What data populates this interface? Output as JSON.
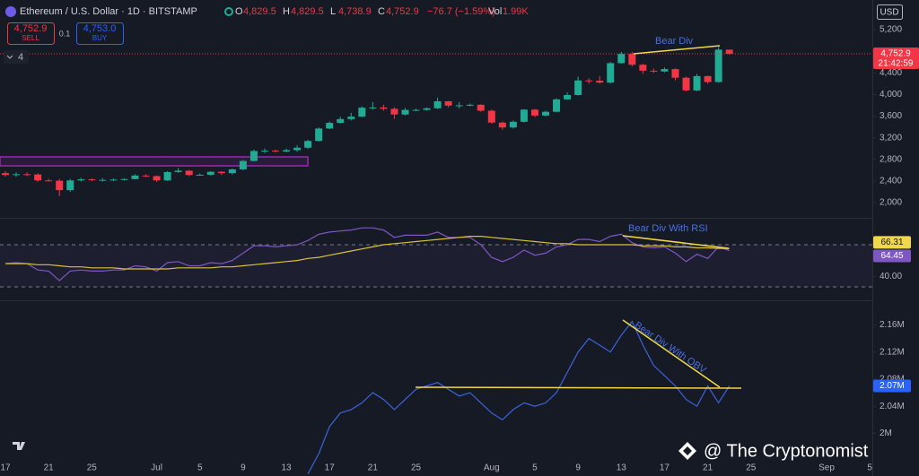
{
  "header": {
    "symbol": "Ethereum / U.S. Dollar · 1D · BITSTAMP",
    "ohlc": [
      {
        "key": "O",
        "value": "4,829.5"
      },
      {
        "key": "H",
        "value": "4,829.5"
      },
      {
        "key": "L",
        "value": "4,738.9"
      },
      {
        "key": "C",
        "value": "4,752.9"
      }
    ],
    "change": "−76.7 (−1.59%)",
    "vol_key": "Vol",
    "vol": "1.99K",
    "sell_price": "4,752.9",
    "sell": "SELL",
    "spread": "0.1",
    "buy_price": "4,753.0",
    "buy": "BUY",
    "indicators": "4",
    "currency": "USD",
    "countdown": "21:42:59",
    "watermark": "@ The Cryptonomist"
  },
  "chart_data": [
    {
      "type": "candlestick",
      "annotation": "Bear Div",
      "up_color": "#22ab94",
      "down_color": "#f23645",
      "grid": false,
      "x": [
        "Jun 17",
        "Jun 18",
        "Jun 19",
        "Jun 20",
        "Jun 21",
        "Jun 22",
        "Jun 23",
        "Jun 24",
        "Jun 25",
        "Jun 26",
        "Jun 27",
        "Jun 28",
        "Jun 29",
        "Jun 30",
        "Jul 1",
        "Jul 2",
        "Jul 3",
        "Jul 4",
        "Jul 5",
        "Jul 6",
        "Jul 7",
        "Jul 8",
        "Jul 9",
        "Jul 10",
        "Jul 11",
        "Jul 12",
        "Jul 13",
        "Jul 14",
        "Jul 15",
        "Jul 16",
        "Jul 17",
        "Jul 18",
        "Jul 19",
        "Jul 20",
        "Jul 21",
        "Jul 22",
        "Jul 23",
        "Jul 24",
        "Jul 25",
        "Jul 26",
        "Jul 27",
        "Jul 28",
        "Jul 29",
        "Jul 30",
        "Jul 31",
        "Aug 1",
        "Aug 2",
        "Aug 3",
        "Aug 4",
        "Aug 5",
        "Aug 6",
        "Aug 7",
        "Aug 8",
        "Aug 9",
        "Aug 10",
        "Aug 11",
        "Aug 12",
        "Aug 13",
        "Aug 14",
        "Aug 15",
        "Aug 16",
        "Aug 17",
        "Aug 18",
        "Aug 19",
        "Aug 20",
        "Aug 21",
        "Aug 22",
        "Aug 23"
      ],
      "open": [
        2545,
        2510,
        2525,
        2520,
        2410,
        2405,
        2230,
        2410,
        2430,
        2420,
        2420,
        2425,
        2435,
        2500,
        2490,
        2410,
        2565,
        2590,
        2510,
        2515,
        2570,
        2545,
        2615,
        2770,
        2955,
        2960,
        2945,
        2970,
        3015,
        3140,
        3370,
        3475,
        3545,
        3590,
        3755,
        3760,
        3735,
        3630,
        3715,
        3715,
        3745,
        3875,
        3795,
        3800,
        3810,
        3700,
        3480,
        3390,
        3495,
        3720,
        3610,
        3680,
        3910,
        3990,
        4260,
        4255,
        4220,
        4580,
        4750,
        4550,
        4440,
        4425,
        4470,
        4310,
        4075,
        4340,
        4230,
        4829.5
      ],
      "high": [
        2585,
        2560,
        2560,
        2540,
        2440,
        2440,
        2440,
        2460,
        2450,
        2455,
        2450,
        2450,
        2525,
        2525,
        2500,
        2580,
        2640,
        2600,
        2540,
        2580,
        2580,
        2630,
        2790,
        2980,
        3000,
        2980,
        3000,
        3060,
        3160,
        3390,
        3500,
        3590,
        3660,
        3780,
        3860,
        3810,
        3760,
        3750,
        3740,
        3760,
        3940,
        3880,
        3860,
        3830,
        3820,
        3720,
        3500,
        3520,
        3730,
        3730,
        3700,
        3930,
        4040,
        4330,
        4300,
        4340,
        4600,
        4790,
        4790,
        4570,
        4480,
        4500,
        4480,
        4330,
        4380,
        4350,
        4880,
        4829.5
      ],
      "low": [
        2480,
        2480,
        2490,
        2380,
        2390,
        2120,
        2200,
        2390,
        2395,
        2390,
        2400,
        2410,
        2430,
        2470,
        2380,
        2400,
        2550,
        2490,
        2500,
        2500,
        2510,
        2520,
        2600,
        2760,
        2920,
        2930,
        2930,
        2940,
        2990,
        3130,
        3360,
        3460,
        3520,
        3580,
        3720,
        3700,
        3550,
        3610,
        3690,
        3700,
        3730,
        3760,
        3740,
        3780,
        3680,
        3460,
        3350,
        3370,
        3480,
        3580,
        3590,
        3670,
        3900,
        3980,
        4200,
        4200,
        4200,
        4570,
        4520,
        4380,
        4400,
        4410,
        4260,
        4060,
        4060,
        4200,
        4220,
        4738.9
      ],
      "close": [
        2510,
        2525,
        2520,
        2410,
        2405,
        2230,
        2410,
        2430,
        2420,
        2420,
        2425,
        2435,
        2500,
        2490,
        2410,
        2565,
        2590,
        2510,
        2515,
        2570,
        2545,
        2615,
        2770,
        2955,
        2960,
        2945,
        2970,
        3015,
        3140,
        3370,
        3475,
        3545,
        3590,
        3755,
        3760,
        3735,
        3630,
        3715,
        3715,
        3745,
        3875,
        3795,
        3800,
        3810,
        3700,
        3480,
        3390,
        3495,
        3720,
        3610,
        3680,
        3910,
        3990,
        4260,
        4255,
        4220,
        4580,
        4750,
        4550,
        4440,
        4425,
        4470,
        4310,
        4075,
        4340,
        4230,
        4829.6,
        4752.9
      ],
      "last_price": {
        "value": 4752.9,
        "label": "4,752.9"
      },
      "ylim": [
        1718,
        5748
      ],
      "yticks": [
        {
          "value": 2000,
          "label": "2,000"
        },
        {
          "value": 2400,
          "label": "2,400"
        },
        {
          "value": 2800,
          "label": "2,800"
        },
        {
          "value": 3200,
          "label": "3,200"
        },
        {
          "value": 3600,
          "label": "3,600"
        },
        {
          "value": 4000,
          "label": "4,000"
        },
        {
          "value": 4400,
          "label": "4,400"
        },
        {
          "value": 4800,
          "label": "4,800"
        },
        {
          "value": 5200,
          "label": "5,200"
        }
      ]
    },
    {
      "type": "line",
      "annotation": "Bear Div With RSI",
      "bands": [
        30,
        70
      ],
      "ylim": [
        17.2,
        94.7
      ],
      "yticks": [
        {
          "value": 40,
          "label": "40.00"
        }
      ],
      "series": [
        {
          "color": "#7e57c2",
          "label_bg": "#7e57c2",
          "values": [
            52,
            53,
            52,
            46,
            45,
            36,
            45,
            46,
            45,
            45,
            46,
            46,
            50,
            49,
            45,
            53,
            54,
            50,
            50,
            53,
            52,
            55,
            62,
            69,
            69,
            68,
            69,
            70,
            74,
            80,
            82,
            83,
            84,
            86,
            86,
            84,
            77,
            79,
            79,
            79,
            82,
            77,
            77,
            77,
            70,
            58,
            54,
            58,
            65,
            60,
            62,
            68,
            70,
            75,
            75,
            73,
            78,
            80,
            72,
            68,
            67,
            68,
            62,
            54,
            61,
            57,
            68,
            64.45
          ]
        },
        {
          "color": "#d9c23a",
          "label_bg": "#f0d84a",
          "values": [
            52,
            52,
            52,
            51,
            51,
            50,
            49,
            49,
            48,
            48,
            48,
            47,
            47,
            47,
            47,
            47,
            48,
            48,
            48,
            48,
            49,
            49,
            50,
            51,
            52,
            53,
            54,
            55,
            57,
            58,
            60,
            62,
            64,
            66,
            68,
            70,
            71,
            72,
            73,
            74,
            75,
            76,
            77,
            78,
            78,
            77,
            76,
            75,
            74,
            73,
            72,
            71,
            71,
            70,
            70,
            70,
            70,
            70,
            70,
            69,
            69,
            69,
            68,
            68,
            67,
            67,
            66.5,
            66.31
          ]
        }
      ]
    },
    {
      "type": "line",
      "annotation": "Bear Div With OBV",
      "ylim": [
        1937000,
        2195000
      ],
      "yticks": [
        {
          "value": 2000000,
          "label": "2M"
        },
        {
          "value": 2040000,
          "label": "2.04M"
        },
        {
          "value": 2080000,
          "label": "2.08M"
        },
        {
          "value": 2120000,
          "label": "2.12M"
        },
        {
          "value": 2160000,
          "label": "2.16M"
        }
      ],
      "xticks": [
        {
          "value": "Jun 17",
          "label": "17"
        },
        {
          "value": "Jun 21",
          "label": "21"
        },
        {
          "value": "Jun 25",
          "label": "25"
        },
        {
          "value": "Jul 1",
          "label": "Jul"
        },
        {
          "value": "Jul 5",
          "label": "5"
        },
        {
          "value": "Jul 9",
          "label": "9"
        },
        {
          "value": "Jul 13",
          "label": "13"
        },
        {
          "value": "Jul 17",
          "label": "17"
        },
        {
          "value": "Jul 21",
          "label": "21"
        },
        {
          "value": "Jul 25",
          "label": "25"
        },
        {
          "value": "Aug 1",
          "label": "Aug"
        },
        {
          "value": "Aug 5",
          "label": "5"
        },
        {
          "value": "Aug 9",
          "label": "9"
        },
        {
          "value": "Aug 13",
          "label": "13"
        },
        {
          "value": "Aug 17",
          "label": "17"
        },
        {
          "value": "Aug 21",
          "label": "21"
        },
        {
          "value": "Aug 25",
          "label": "25"
        },
        {
          "value": "Sep 1",
          "label": "Sep"
        },
        {
          "value": "Sep 5",
          "label": "5"
        }
      ],
      "series": [
        {
          "color": "#3d63dd",
          "label_bg": "#2962ff",
          "values": [
            null,
            null,
            null,
            null,
            null,
            null,
            null,
            null,
            null,
            null,
            null,
            null,
            null,
            null,
            null,
            null,
            null,
            null,
            null,
            null,
            null,
            null,
            null,
            null,
            null,
            null,
            null,
            null,
            1940000,
            1970000,
            2010000,
            2030000,
            2035000,
            2045000,
            2060000,
            2050000,
            2035000,
            2050000,
            2065000,
            2070000,
            2075000,
            2065000,
            2055000,
            2060000,
            2045000,
            2030000,
            2020000,
            2035000,
            2045000,
            2040000,
            2045000,
            2060000,
            2090000,
            2120000,
            2140000,
            2130000,
            2120000,
            2145000,
            2165000,
            2130000,
            2100000,
            2085000,
            2070000,
            2050000,
            2040000,
            2070000,
            2045000,
            2070000
          ],
          "value_labels": [
            null,
            null,
            null,
            null,
            null,
            null,
            null,
            null,
            null,
            null,
            null,
            null,
            null,
            null,
            null,
            null,
            null,
            null,
            null,
            null,
            null,
            null,
            null,
            null,
            null,
            null,
            null,
            null,
            null,
            null,
            null,
            null,
            null,
            null,
            null,
            null,
            null,
            null,
            null,
            null,
            null,
            null,
            null,
            null,
            null,
            null,
            null,
            null,
            null,
            null,
            null,
            null,
            null,
            null,
            null,
            null,
            null,
            null,
            null,
            null,
            null,
            null,
            null,
            null,
            null,
            null,
            null,
            "2.07M"
          ]
        }
      ]
    }
  ]
}
